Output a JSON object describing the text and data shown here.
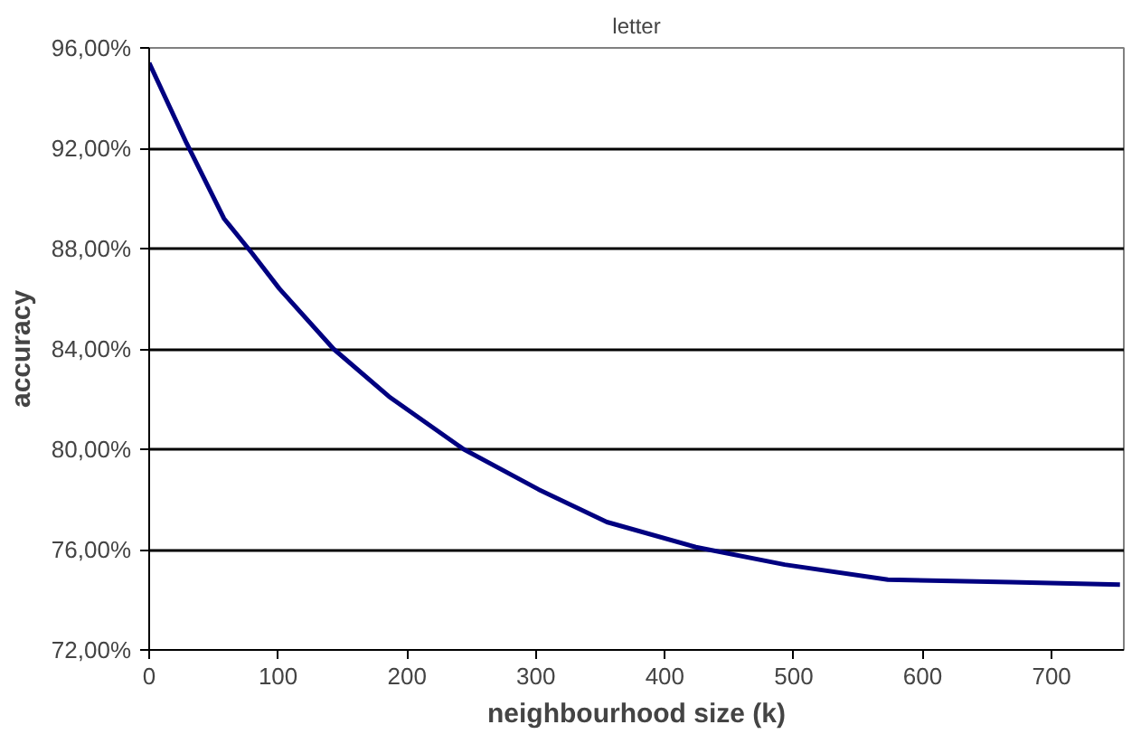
{
  "chart_data": {
    "type": "line",
    "title": "letter",
    "xlabel": "neighbourhood size (k)",
    "ylabel": "accuracy",
    "x": [
      0,
      29,
      58,
      80,
      101,
      143,
      186,
      244,
      302,
      355,
      424,
      493,
      573,
      668,
      753
    ],
    "series": [
      {
        "color": "#000080",
        "values": [
          95.4,
          92.2,
          89.2,
          87.8,
          86.4,
          84.0,
          82.1,
          80.0,
          78.4,
          77.1,
          76.1,
          75.4,
          74.8,
          74.7,
          74.6
        ]
      }
    ],
    "xlim": [
      0,
      756
    ],
    "xticks": [
      0,
      100,
      200,
      300,
      400,
      500,
      600,
      700
    ],
    "ylim": [
      72,
      96
    ],
    "yticks": [
      {
        "value": 72,
        "label": "72,00%"
      },
      {
        "value": 76,
        "label": "76,00%"
      },
      {
        "value": 80,
        "label": "80,00%"
      },
      {
        "value": 84,
        "label": "84,00%"
      },
      {
        "value": 88,
        "label": "88,00%"
      },
      {
        "value": 92,
        "label": "92,00%"
      },
      {
        "value": 96,
        "label": "96,00%"
      }
    ],
    "grid": "y",
    "marker": "none",
    "line_style": "solid"
  }
}
